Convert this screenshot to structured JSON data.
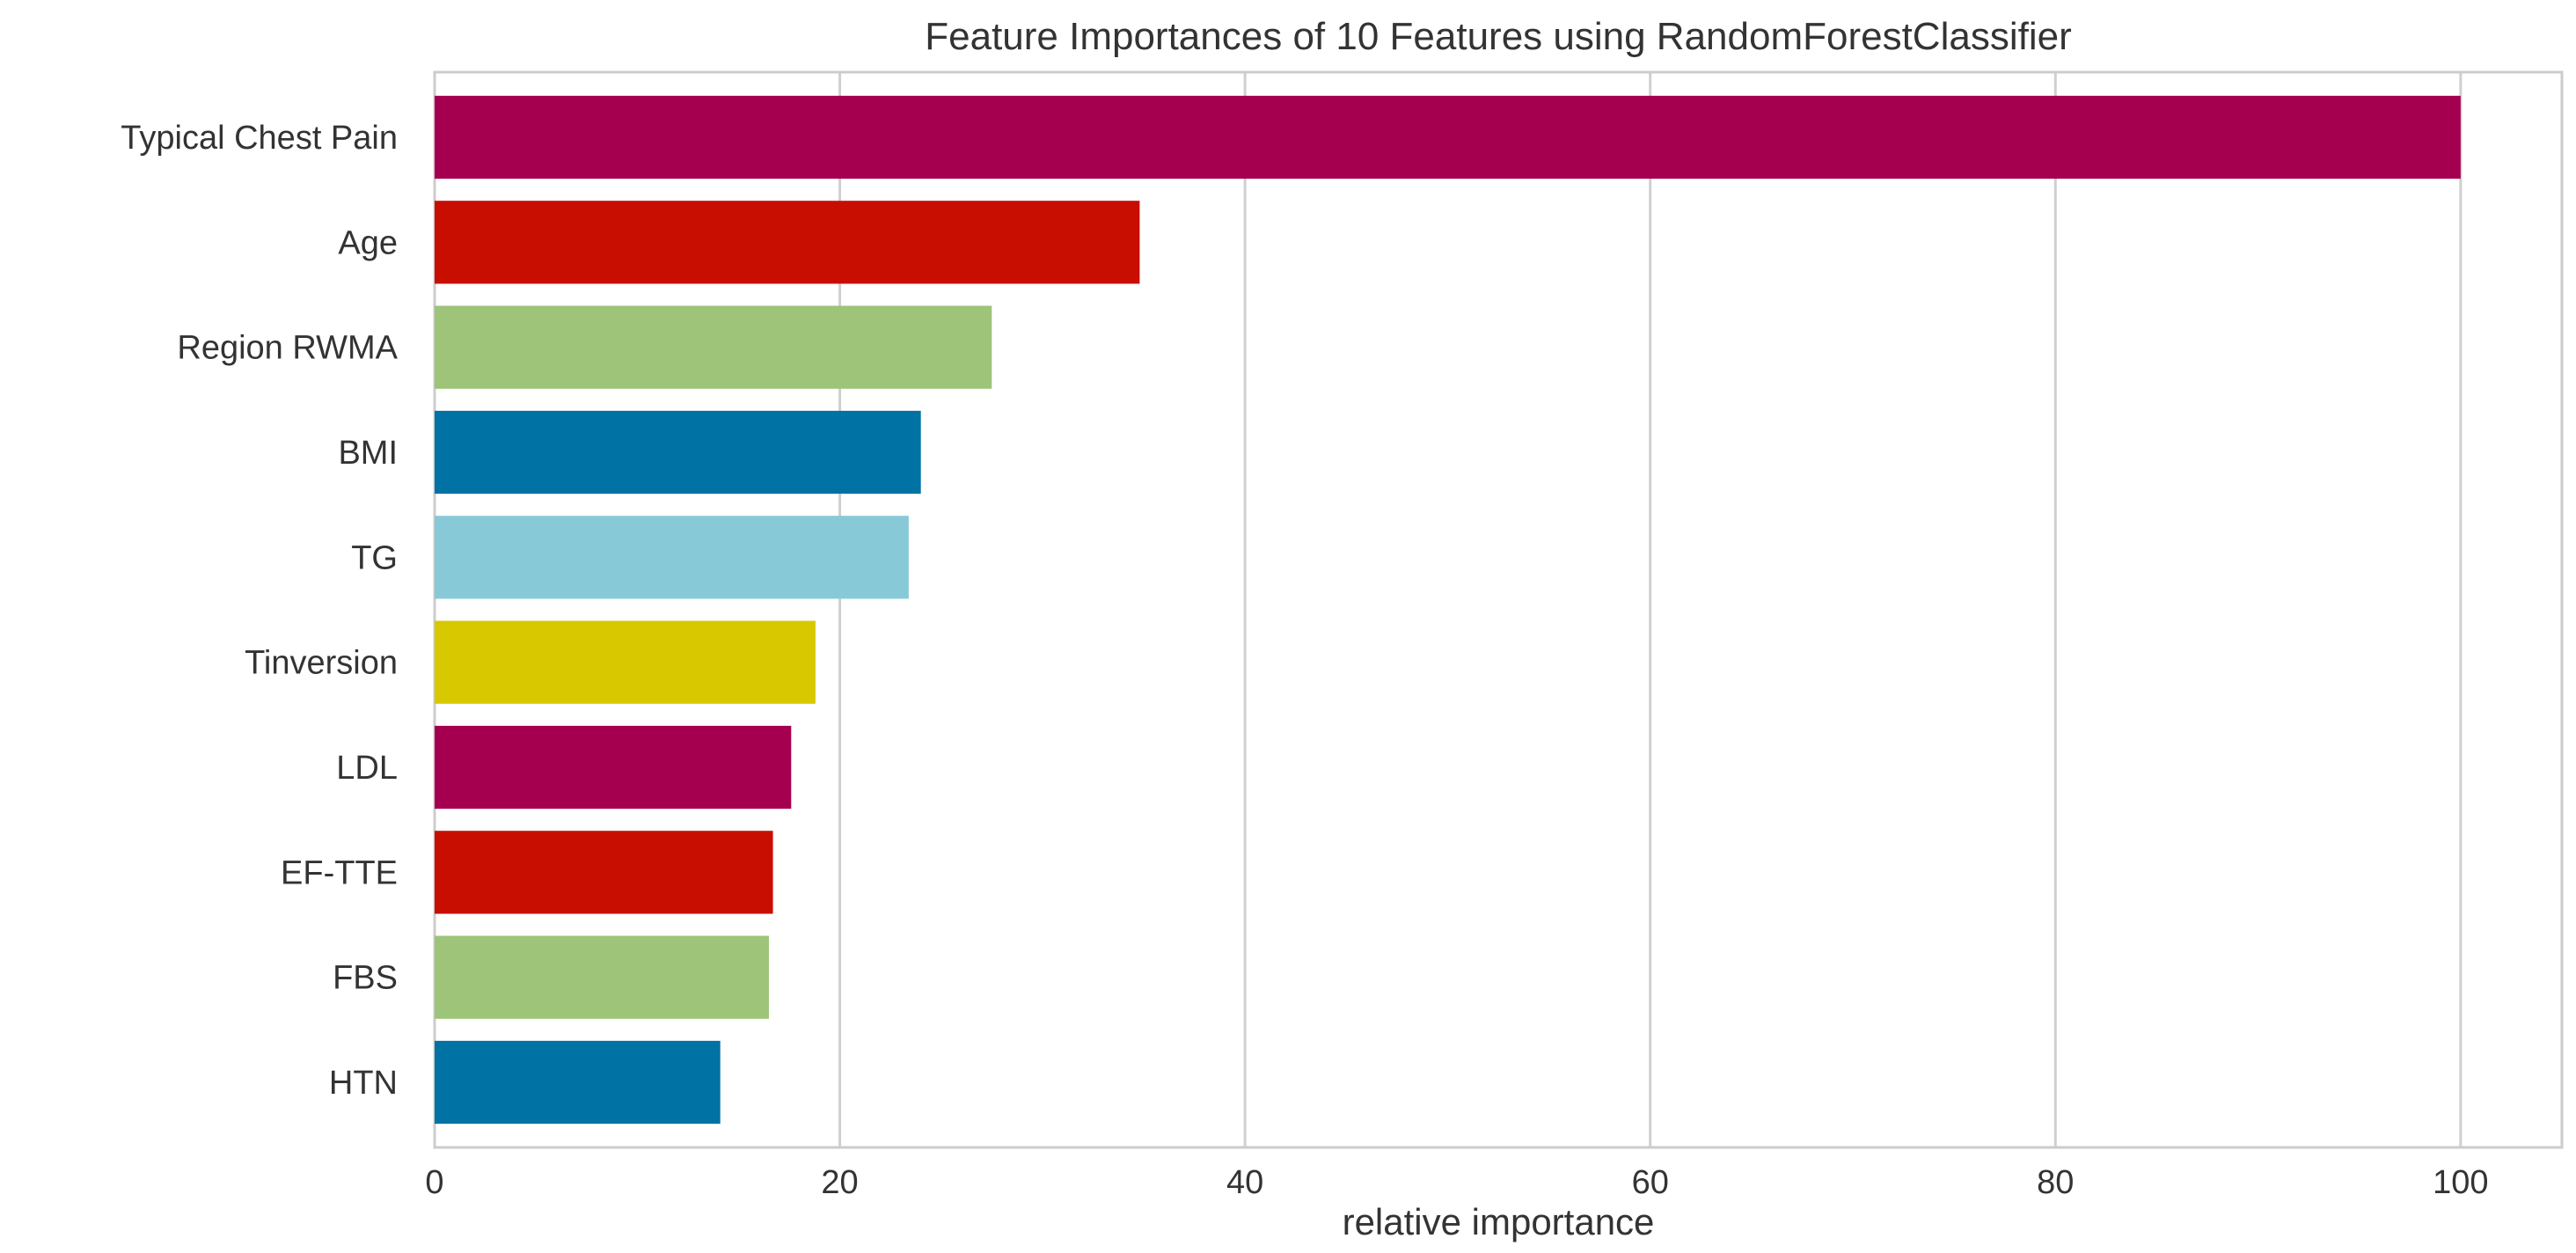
{
  "chart_data": {
    "type": "bar",
    "orientation": "horizontal",
    "title": "Feature Importances of 10 Features using RandomForestClassifier",
    "xlabel": "relative importance",
    "ylabel": "",
    "xlim": [
      0,
      105
    ],
    "xticks": [
      0,
      20,
      40,
      60,
      80,
      100
    ],
    "grid": true,
    "categories": [
      "Typical Chest Pain",
      "Age",
      "Region RWMA",
      "BMI",
      "TG",
      "Tinversion",
      "LDL",
      "EF-TTE",
      "FBS",
      "HTN"
    ],
    "values": [
      100,
      34.8,
      27.5,
      24.0,
      23.4,
      18.8,
      17.6,
      16.7,
      16.5,
      14.1
    ],
    "colors": [
      "#A50050",
      "#C80E00",
      "#9DC478",
      "#0072A3",
      "#88C9D8",
      "#D8C800",
      "#A50050",
      "#C80E00",
      "#9DC478",
      "#0072A3"
    ]
  }
}
